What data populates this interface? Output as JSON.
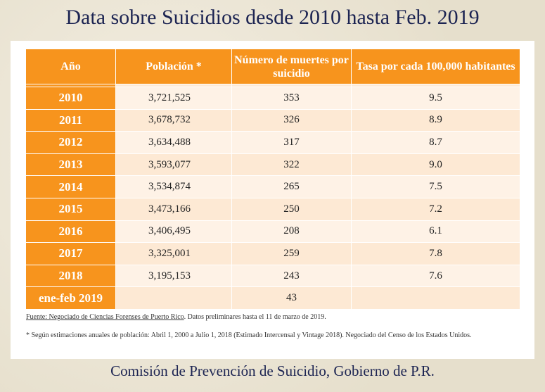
{
  "title": "Data sobre Suicidios desde 2010 hasta Feb. 2019",
  "table": {
    "header": [
      "Año",
      "Población *",
      "Número de muertes por suicidio",
      "Tasa por cada 100,000 habitantes"
    ],
    "rows": [
      [
        "2010",
        "3,721,525",
        "353",
        "9.5"
      ],
      [
        "2011",
        "3,678,732",
        "326",
        "8.9"
      ],
      [
        "2012",
        "3,634,488",
        "317",
        "8.7"
      ],
      [
        "2013",
        "3,593,077",
        "322",
        "9.0"
      ],
      [
        "2014",
        "3,534,874",
        "265",
        "7.5"
      ],
      [
        "2015",
        "3,473,166",
        "250",
        "7.2"
      ],
      [
        "2016",
        "3,406,495",
        "208",
        "6.1"
      ],
      [
        "2017",
        "3,325,001",
        "259",
        "7.8"
      ],
      [
        "2018",
        "3,195,153",
        "243",
        "7.6"
      ],
      [
        "ene-feb 2019",
        "",
        "43",
        ""
      ]
    ]
  },
  "notes": {
    "source": "Fuente: Negociado de Ciencias Forenses de Puerto Rico",
    "source_rest": ". Datos preliminares hasta el 11 de marzo de 2019.",
    "population": "* Según estimaciones anuales de población: Abril 1, 2000 a Julio 1, 2018 (Estimado Intercensal y Vintage 2018). Negociado del Censo de los Estados Unidos."
  },
  "footer": "Comisión de Prevención de Suicidio, Gobierno de P.R."
}
